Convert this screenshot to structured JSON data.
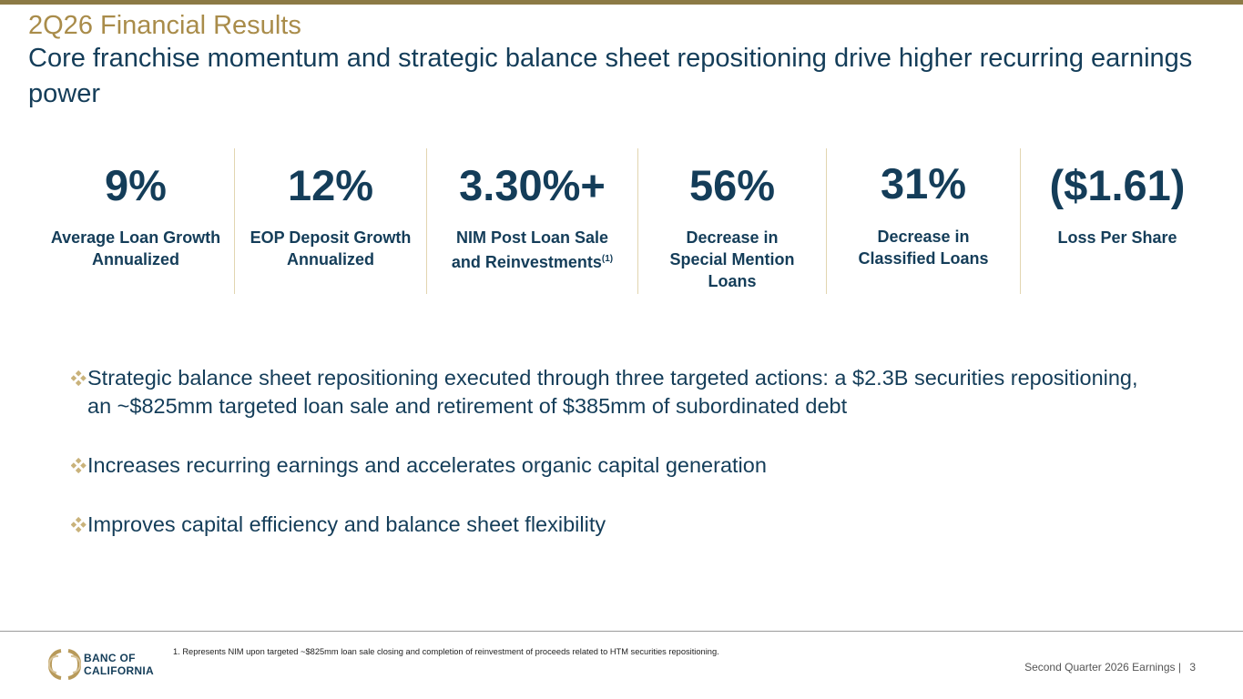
{
  "header": {
    "title": "2Q26 Financial Results",
    "subtitle": "Core franchise momentum and strategic balance sheet repositioning drive higher recurring earnings power"
  },
  "metrics": [
    {
      "value": "9%",
      "label": "Average Loan Growth Annualized"
    },
    {
      "value": "12%",
      "label": "EOP Deposit Growth Annualized"
    },
    {
      "value": "3.30%+",
      "label": "NIM Post Loan Sale and Reinvestments",
      "footnote_ref": "(1)"
    },
    {
      "value": "56%",
      "label": "Decrease in Special Mention Loans"
    },
    {
      "value": "31%",
      "label": "Decrease in Classified Loans"
    },
    {
      "value": "($1.61)",
      "label": "Loss Per Share"
    }
  ],
  "bullets": [
    "Strategic balance sheet repositioning executed through three targeted actions: a $2.3B securities repositioning, an ~$825mm targeted loan sale and retirement of $385mm of subordinated debt",
    "Increases recurring earnings and accelerates organic capital generation",
    "Improves capital efficiency and balance sheet flexibility"
  ],
  "footer": {
    "footnote": "1.  Represents NIM upon targeted ~$825mm loan sale closing and completion of reinvestment of proceeds related to HTM securities repositioning.",
    "logo_line1": "BANC OF",
    "logo_line2": "CALIFORNIA",
    "page_label": "Second Quarter 2026 Earnings |",
    "page_number": "3"
  },
  "colors": {
    "navy": "#143d59",
    "gold": "#a98c4a",
    "accent_bar": "#8c7a45",
    "divider": "#e2d5b0"
  }
}
